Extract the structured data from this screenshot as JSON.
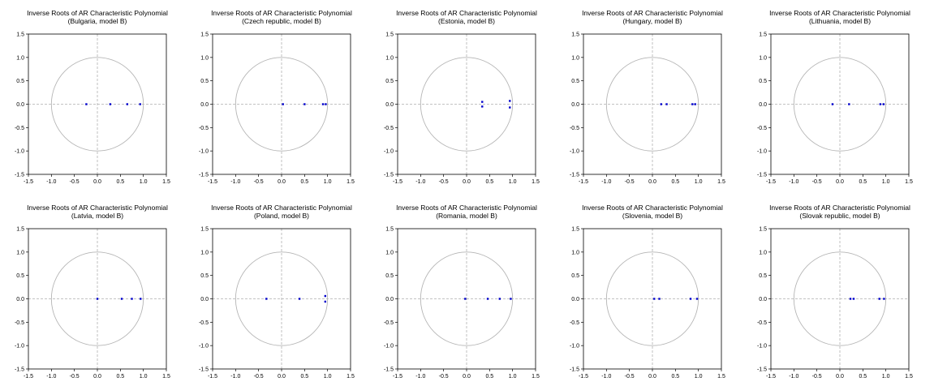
{
  "axis_ticks": [
    "-1.5",
    "-1.0",
    "-0.5",
    "0.0",
    "0.5",
    "1.0",
    "1.5"
  ],
  "chart_data": [
    {
      "type": "scatter",
      "title": "Inverse Roots of AR Characteristic Polynomial",
      "subtitle": "(Bulgaria, model B)",
      "xlim": [
        -1.5,
        1.5
      ],
      "ylim": [
        -1.5,
        1.5
      ],
      "unit_circle": true,
      "points": [
        [
          -0.24,
          0.0
        ],
        [
          0.28,
          0.0
        ],
        [
          0.65,
          0.0
        ],
        [
          0.93,
          0.0
        ]
      ]
    },
    {
      "type": "scatter",
      "title": "Inverse Roots of AR Characteristic Polynomial",
      "subtitle": "(Czech republic, model B)",
      "xlim": [
        -1.5,
        1.5
      ],
      "ylim": [
        -1.5,
        1.5
      ],
      "unit_circle": true,
      "points": [
        [
          0.03,
          0.0
        ],
        [
          0.5,
          0.0
        ],
        [
          0.9,
          0.0
        ],
        [
          0.96,
          0.0
        ]
      ]
    },
    {
      "type": "scatter",
      "title": "Inverse Roots of AR Characteristic Polynomial",
      "subtitle": "(Estonia, model B)",
      "xlim": [
        -1.5,
        1.5
      ],
      "ylim": [
        -1.5,
        1.5
      ],
      "unit_circle": true,
      "points": [
        [
          0.34,
          0.05
        ],
        [
          0.34,
          -0.05
        ],
        [
          0.94,
          0.07
        ],
        [
          0.94,
          -0.07
        ]
      ]
    },
    {
      "type": "scatter",
      "title": "Inverse Roots of AR Characteristic Polynomial",
      "subtitle": "(Hungary, model B)",
      "xlim": [
        -1.5,
        1.5
      ],
      "ylim": [
        -1.5,
        1.5
      ],
      "unit_circle": true,
      "points": [
        [
          0.19,
          0.0
        ],
        [
          0.31,
          0.0
        ],
        [
          0.87,
          0.0
        ],
        [
          0.93,
          0.0
        ]
      ]
    },
    {
      "type": "scatter",
      "title": "Inverse Roots of AR Characteristic Polynomial",
      "subtitle": "(Lithuania, model B)",
      "xlim": [
        -1.5,
        1.5
      ],
      "ylim": [
        -1.5,
        1.5
      ],
      "unit_circle": true,
      "points": [
        [
          -0.16,
          0.0
        ],
        [
          0.2,
          0.0
        ],
        [
          0.88,
          0.0
        ],
        [
          0.95,
          0.0
        ]
      ]
    },
    {
      "type": "scatter",
      "title": "Inverse Roots of AR Characteristic Polynomial",
      "subtitle": "(Latvia, model B)",
      "xlim": [
        -1.5,
        1.5
      ],
      "ylim": [
        -1.5,
        1.5
      ],
      "unit_circle": true,
      "points": [
        [
          0.0,
          0.0
        ],
        [
          0.53,
          0.0
        ],
        [
          0.75,
          0.0
        ],
        [
          0.94,
          0.0
        ]
      ]
    },
    {
      "type": "scatter",
      "title": "Inverse Roots of AR Characteristic Polynomial",
      "subtitle": "(Poland, model B)",
      "xlim": [
        -1.5,
        1.5
      ],
      "ylim": [
        -1.5,
        1.5
      ],
      "unit_circle": true,
      "points": [
        [
          -0.33,
          0.0
        ],
        [
          0.39,
          0.0
        ],
        [
          0.95,
          0.06
        ],
        [
          0.95,
          -0.06
        ]
      ]
    },
    {
      "type": "scatter",
      "title": "Inverse Roots of AR Characteristic Polynomial",
      "subtitle": "(Romania, model B)",
      "xlim": [
        -1.5,
        1.5
      ],
      "ylim": [
        -1.5,
        1.5
      ],
      "unit_circle": true,
      "points": [
        [
          -0.03,
          0.0
        ],
        [
          0.46,
          0.0
        ],
        [
          0.72,
          0.0
        ],
        [
          0.96,
          0.0
        ]
      ]
    },
    {
      "type": "scatter",
      "title": "Inverse Roots of AR Characteristic Polynomial",
      "subtitle": "(Slovenia, model B)",
      "xlim": [
        -1.5,
        1.5
      ],
      "ylim": [
        -1.5,
        1.5
      ],
      "unit_circle": true,
      "points": [
        [
          0.04,
          0.0
        ],
        [
          0.15,
          0.0
        ],
        [
          0.83,
          0.0
        ],
        [
          0.97,
          0.0
        ]
      ]
    },
    {
      "type": "scatter",
      "title": "Inverse Roots of AR Characteristic Polynomial",
      "subtitle": "(Slovak republic, model B)",
      "xlim": [
        -1.5,
        1.5
      ],
      "ylim": [
        -1.5,
        1.5
      ],
      "unit_circle": true,
      "points": [
        [
          0.23,
          0.0
        ],
        [
          0.3,
          0.0
        ],
        [
          0.86,
          0.0
        ],
        [
          0.96,
          0.0
        ]
      ]
    }
  ],
  "colors": {
    "points": "#0000cc",
    "circle": "#b5b5b5",
    "zero_lines": "#b0b0b0",
    "frame": "#000000"
  }
}
